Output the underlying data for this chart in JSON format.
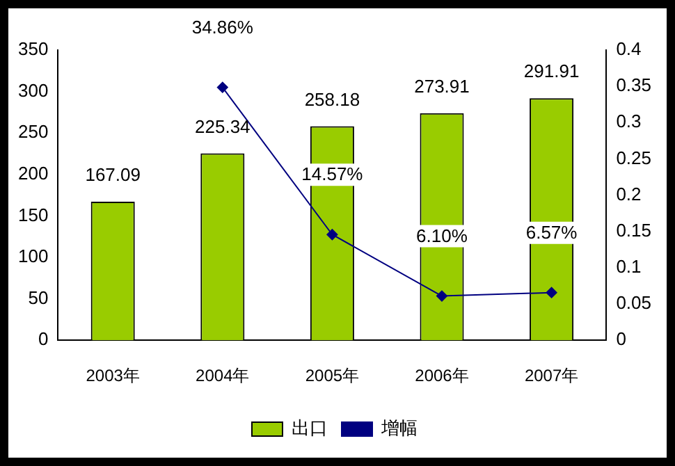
{
  "chart_data": {
    "type": "bar",
    "categories": [
      "2003年",
      "2004年",
      "2005年",
      "2006年",
      "2007年"
    ],
    "series": [
      {
        "name": "出口",
        "color": "#99cc00",
        "values": [
          167.09,
          225.34,
          258.18,
          273.91,
          291.91
        ],
        "value_labels": [
          "167.09",
          "225.34",
          "258.18",
          "273.91",
          "291.91"
        ]
      },
      {
        "name": "增幅",
        "type": "line",
        "axis": "y2",
        "color": "#000080",
        "marker": "diamond",
        "values": [
          null,
          0.3486,
          0.1457,
          0.061,
          0.0657
        ],
        "value_labels": [
          null,
          "34.86%",
          "14.57%",
          "6.10%",
          "6.57%"
        ]
      }
    ],
    "ylim": [
      0,
      350
    ],
    "yticks": [
      0,
      50,
      100,
      150,
      200,
      250,
      300,
      350
    ],
    "y2lim": [
      0,
      0.4
    ],
    "y2ticks": [
      0,
      0.05,
      0.1,
      0.15,
      0.2,
      0.25,
      0.3,
      0.35,
      0.4
    ],
    "grid": false,
    "legend": "bottom"
  }
}
